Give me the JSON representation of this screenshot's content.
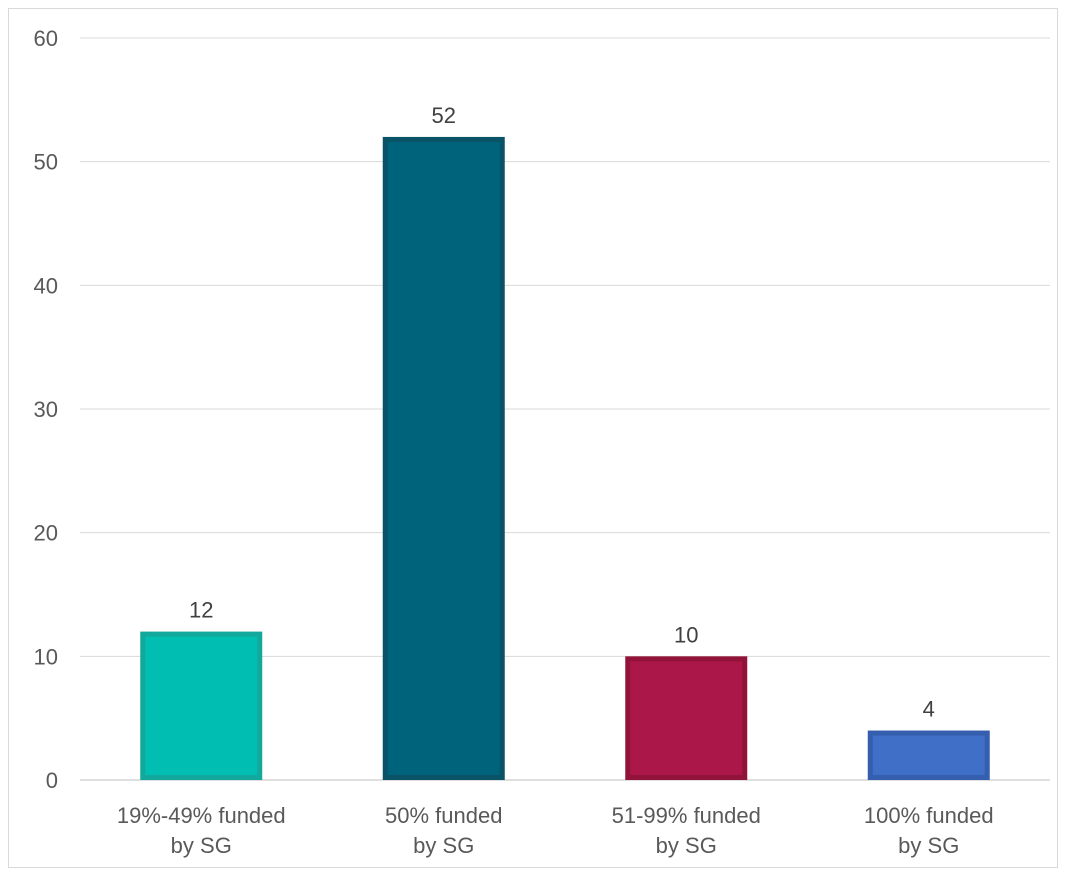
{
  "chart_data": {
    "type": "bar",
    "categories": [
      [
        "19%-49% funded",
        "by SG"
      ],
      [
        "50% funded",
        "by SG"
      ],
      [
        "51-99% funded",
        "by SG"
      ],
      [
        "100% funded",
        "by SG"
      ]
    ],
    "values": [
      12,
      52,
      10,
      4
    ],
    "data_labels": [
      "12",
      "52",
      "10",
      "4"
    ],
    "yticks": [
      "0",
      "10",
      "20",
      "30",
      "40",
      "50",
      "60"
    ],
    "ylim": [
      0,
      60
    ],
    "grid": true,
    "legend": "none",
    "colors": [
      "#00BFB2",
      "#00637C",
      "#AB1748",
      "#3F6FC6"
    ],
    "border_colors": [
      "#12A89C",
      "#0A5366",
      "#921339",
      "#355FAE"
    ],
    "colors_meaning": "per-bar fill colors"
  }
}
